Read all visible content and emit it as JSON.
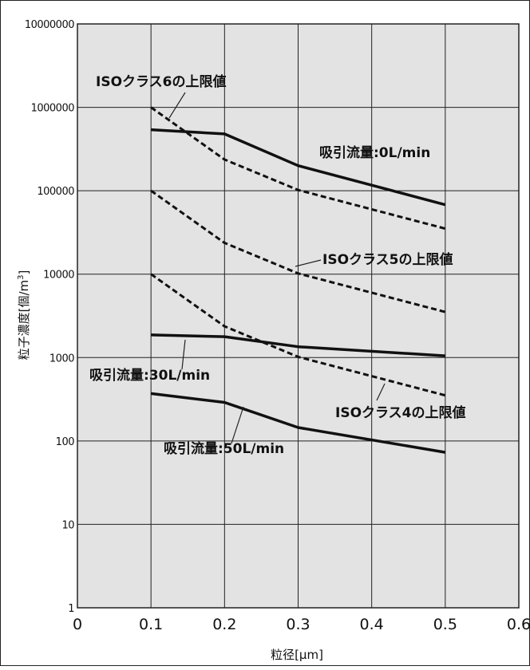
{
  "chart_data": {
    "type": "line",
    "title": "",
    "xlabel": "粒径[μm]",
    "ylabel": "粒子濃度[個/m³]",
    "ylabel_parts": {
      "main": "粒子濃度[個/m",
      "sup": "3",
      "close": "]"
    },
    "xlim": [
      0,
      0.6
    ],
    "ylim": [
      1,
      10000000
    ],
    "y_scale": "log",
    "grid": true,
    "x_ticks": [
      "0",
      "0.1",
      "0.2",
      "0.3",
      "0.4",
      "0.5",
      "0.6"
    ],
    "y_ticks": [
      "1",
      "10",
      "100",
      "1000",
      "10000",
      "100000",
      "1000000",
      "10000000"
    ],
    "series": [
      {
        "name": "吸引流量:0L/min",
        "style": "solid",
        "x": [
          0.1,
          0.2,
          0.3,
          0.5
        ],
        "y": [
          540000,
          480000,
          200000,
          68000
        ]
      },
      {
        "name": "吸引流量:30L/min",
        "style": "solid",
        "x": [
          0.1,
          0.2,
          0.3,
          0.5
        ],
        "y": [
          1870,
          1780,
          1350,
          1050
        ]
      },
      {
        "name": "吸引流量:50L/min",
        "style": "solid",
        "x": [
          0.1,
          0.2,
          0.3,
          0.5
        ],
        "y": [
          370,
          290,
          145,
          73
        ]
      },
      {
        "name": "ISOクラス6の上限値",
        "style": "dashed",
        "x": [
          0.1,
          0.2,
          0.3,
          0.5
        ],
        "y": [
          1000000,
          237000,
          102000,
          35200
        ]
      },
      {
        "name": "ISOクラス5の上限値",
        "style": "dashed",
        "x": [
          0.1,
          0.2,
          0.3,
          0.5
        ],
        "y": [
          100000,
          23700,
          10200,
          3520
        ]
      },
      {
        "name": "ISOクラス4の上限値",
        "style": "dashed",
        "x": [
          0.1,
          0.2,
          0.3,
          0.5
        ],
        "y": [
          10000,
          2370,
          1020,
          352
        ]
      }
    ],
    "annotations": [
      {
        "text": "ISOクラス6の上限値",
        "series": 3
      },
      {
        "text": "吸引流量:0L/min",
        "series": 0
      },
      {
        "text": "ISOクラス5の上限値",
        "series": 4
      },
      {
        "text": "吸引流量:30L/min",
        "series": 1
      },
      {
        "text": "ISOクラス4の上限値",
        "series": 5
      },
      {
        "text": "吸引流量:50L/min",
        "series": 2
      }
    ],
    "colors": {
      "plot_bg": "#e3e3e3",
      "line": "#111111",
      "grid": "#222222"
    }
  }
}
